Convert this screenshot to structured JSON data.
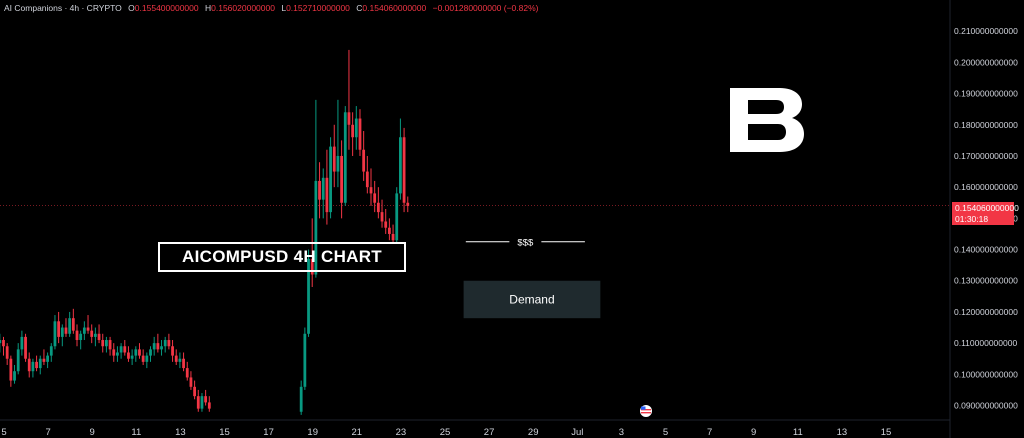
{
  "legend": {
    "symbol": "AI Companions · 4h · CRYPTO",
    "open_label": "O",
    "open": "0.155400000000",
    "high_label": "H",
    "high": "0.156020000000",
    "low_label": "L",
    "low": "0.152710000000",
    "close_label": "C",
    "close": "0.154060000000",
    "change": "−0.001280000000 (−0.82%)"
  },
  "title_box": "AICOMPUSD 4H CHART",
  "current_price": {
    "value": "0.154060000000",
    "countdown": "01:30:18"
  },
  "colors": {
    "up": "#089981",
    "down": "#f23645",
    "background": "#000000",
    "zone": "#1f2a2e"
  },
  "icons": {
    "logo": "b-logo-icon",
    "event": "us-flag-icon"
  },
  "chart_data": {
    "type": "candlestick",
    "ylim": [
      0.086,
      0.22
    ],
    "y_ticks": [
      "0.090000000000",
      "0.100000000000",
      "0.110000000000",
      "0.120000000000",
      "0.130000000000",
      "0.140000000000",
      "0.150000000000",
      "0.160000000000",
      "0.170000000000",
      "0.180000000000",
      "0.190000000000",
      "0.200000000000",
      "0.210000000000"
    ],
    "y_tick_values": [
      0.09,
      0.1,
      0.11,
      0.12,
      0.13,
      0.14,
      0.15,
      0.16,
      0.17,
      0.18,
      0.19,
      0.2,
      0.21
    ],
    "x_ticks": [
      "5",
      "7",
      "9",
      "11",
      "13",
      "15",
      "17",
      "19",
      "21",
      "23",
      "25",
      "27",
      "29",
      "Jul",
      "3",
      "5",
      "7",
      "9",
      "11",
      "13",
      "15"
    ],
    "x_start_day": 5,
    "annotations": [
      {
        "type": "zone",
        "label": "Demand",
        "from_day": 25.3,
        "to_day": 31.5,
        "low": 0.118,
        "high": 0.13
      },
      {
        "type": "line",
        "label": "$$$",
        "from_day": 25.4,
        "to_day": 30.8,
        "value": 0.1425
      }
    ],
    "candles": [
      [
        0.112,
        0.114,
        0.108,
        0.11
      ],
      [
        0.11,
        0.113,
        0.107,
        0.111
      ],
      [
        0.111,
        0.112,
        0.106,
        0.109
      ],
      [
        0.109,
        0.11,
        0.103,
        0.105
      ],
      [
        0.105,
        0.106,
        0.096,
        0.098
      ],
      [
        0.098,
        0.103,
        0.097,
        0.101
      ],
      [
        0.101,
        0.11,
        0.1,
        0.108
      ],
      [
        0.108,
        0.114,
        0.106,
        0.112
      ],
      [
        0.112,
        0.113,
        0.104,
        0.105
      ],
      [
        0.105,
        0.107,
        0.099,
        0.101
      ],
      [
        0.101,
        0.105,
        0.099,
        0.104
      ],
      [
        0.104,
        0.106,
        0.101,
        0.102
      ],
      [
        0.102,
        0.106,
        0.1,
        0.105
      ],
      [
        0.105,
        0.108,
        0.103,
        0.104
      ],
      [
        0.104,
        0.107,
        0.102,
        0.106
      ],
      [
        0.106,
        0.11,
        0.104,
        0.109
      ],
      [
        0.109,
        0.119,
        0.108,
        0.117
      ],
      [
        0.117,
        0.12,
        0.11,
        0.112
      ],
      [
        0.112,
        0.116,
        0.109,
        0.115
      ],
      [
        0.115,
        0.118,
        0.112,
        0.113
      ],
      [
        0.113,
        0.12,
        0.112,
        0.118
      ],
      [
        0.118,
        0.121,
        0.113,
        0.114
      ],
      [
        0.114,
        0.116,
        0.109,
        0.111
      ],
      [
        0.111,
        0.114,
        0.108,
        0.113
      ],
      [
        0.113,
        0.117,
        0.111,
        0.115
      ],
      [
        0.115,
        0.119,
        0.113,
        0.114
      ],
      [
        0.114,
        0.116,
        0.11,
        0.112
      ],
      [
        0.112,
        0.115,
        0.109,
        0.113
      ],
      [
        0.113,
        0.116,
        0.11,
        0.111
      ],
      [
        0.111,
        0.113,
        0.107,
        0.109
      ],
      [
        0.109,
        0.112,
        0.107,
        0.111
      ],
      [
        0.111,
        0.112,
        0.106,
        0.108
      ],
      [
        0.108,
        0.11,
        0.104,
        0.106
      ],
      [
        0.106,
        0.109,
        0.104,
        0.107
      ],
      [
        0.107,
        0.11,
        0.105,
        0.109
      ],
      [
        0.109,
        0.111,
        0.106,
        0.107
      ],
      [
        0.107,
        0.109,
        0.104,
        0.105
      ],
      [
        0.105,
        0.108,
        0.103,
        0.106
      ],
      [
        0.106,
        0.109,
        0.104,
        0.108
      ],
      [
        0.108,
        0.11,
        0.105,
        0.106
      ],
      [
        0.106,
        0.108,
        0.103,
        0.104
      ],
      [
        0.104,
        0.107,
        0.102,
        0.106
      ],
      [
        0.106,
        0.109,
        0.104,
        0.108
      ],
      [
        0.108,
        0.112,
        0.106,
        0.11
      ],
      [
        0.11,
        0.113,
        0.107,
        0.108
      ],
      [
        0.108,
        0.111,
        0.106,
        0.109
      ],
      [
        0.109,
        0.112,
        0.107,
        0.111
      ],
      [
        0.111,
        0.113,
        0.108,
        0.109
      ],
      [
        0.109,
        0.111,
        0.104,
        0.106
      ],
      [
        0.106,
        0.108,
        0.103,
        0.104
      ],
      [
        0.104,
        0.107,
        0.102,
        0.105
      ],
      [
        0.105,
        0.107,
        0.101,
        0.102
      ],
      [
        0.102,
        0.104,
        0.098,
        0.099
      ],
      [
        0.099,
        0.101,
        0.095,
        0.096
      ],
      [
        0.096,
        0.098,
        0.092,
        0.093
      ],
      [
        0.093,
        0.095,
        0.088,
        0.089
      ],
      [
        0.089,
        0.094,
        0.088,
        0.093
      ],
      [
        0.093,
        0.095,
        0.09,
        0.091
      ],
      [
        0.091,
        0.093,
        0.088,
        0.089
      ],
      null,
      null,
      null,
      null,
      null,
      null,
      null,
      null,
      null,
      null,
      null,
      null,
      null,
      null,
      null,
      null,
      null,
      null,
      null,
      null,
      null,
      null,
      null,
      null,
      [
        0.088,
        0.098,
        0.087,
        0.096
      ],
      [
        0.096,
        0.115,
        0.095,
        0.113
      ],
      [
        0.113,
        0.14,
        0.112,
        0.137
      ],
      [
        0.137,
        0.15,
        0.128,
        0.132
      ],
      [
        0.132,
        0.188,
        0.131,
        0.162
      ],
      [
        0.162,
        0.168,
        0.15,
        0.156
      ],
      [
        0.156,
        0.166,
        0.15,
        0.163
      ],
      [
        0.163,
        0.172,
        0.148,
        0.152
      ],
      [
        0.152,
        0.176,
        0.15,
        0.173
      ],
      [
        0.173,
        0.18,
        0.16,
        0.165
      ],
      [
        0.165,
        0.188,
        0.16,
        0.17
      ],
      [
        0.17,
        0.175,
        0.15,
        0.155
      ],
      [
        0.155,
        0.186,
        0.154,
        0.184
      ],
      [
        0.184,
        0.204,
        0.172,
        0.18
      ],
      [
        0.18,
        0.184,
        0.17,
        0.176
      ],
      [
        0.176,
        0.186,
        0.172,
        0.182
      ],
      [
        0.182,
        0.185,
        0.17,
        0.172
      ],
      [
        0.172,
        0.178,
        0.162,
        0.165
      ],
      [
        0.165,
        0.17,
        0.158,
        0.16
      ],
      [
        0.16,
        0.166,
        0.154,
        0.158
      ],
      [
        0.158,
        0.162,
        0.152,
        0.155
      ],
      [
        0.155,
        0.16,
        0.15,
        0.152
      ],
      [
        0.152,
        0.156,
        0.147,
        0.149
      ],
      [
        0.149,
        0.153,
        0.145,
        0.147
      ],
      [
        0.147,
        0.15,
        0.143,
        0.145
      ],
      [
        0.145,
        0.148,
        0.142,
        0.143
      ],
      [
        0.143,
        0.16,
        0.142,
        0.158
      ],
      [
        0.158,
        0.182,
        0.156,
        0.176
      ],
      [
        0.176,
        0.179,
        0.152,
        0.155
      ],
      [
        0.155,
        0.157,
        0.152,
        0.154
      ]
    ]
  }
}
